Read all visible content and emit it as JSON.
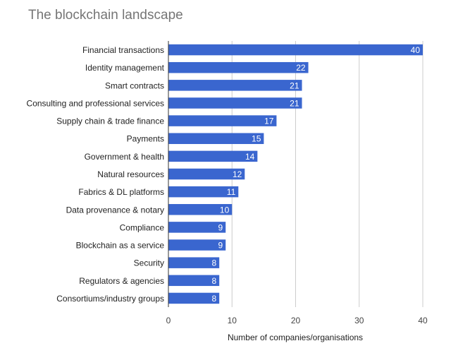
{
  "chart_data": {
    "type": "bar",
    "orientation": "horizontal",
    "title": "The blockchain landscape",
    "xlabel": "Number of companies/organisations",
    "ylabel": "",
    "xlim": [
      0,
      40
    ],
    "ticks": [
      0,
      10,
      20,
      30,
      40
    ],
    "grid": true,
    "legend": "none",
    "bar_color": "#3a66cf",
    "categories": [
      "Financial transactions",
      "Identity management",
      "Smart contracts",
      "Consulting and professional services",
      "Supply chain & trade finance",
      "Payments",
      "Government & health",
      "Natural resources",
      "Fabrics & DL platforms",
      "Data provenance & notary",
      "Compliance",
      "Blockchain as a service",
      "Security",
      "Regulators & agencies",
      "Consortiums/industry groups"
    ],
    "values": [
      40,
      22,
      21,
      21,
      17,
      15,
      14,
      12,
      11,
      10,
      9,
      9,
      8,
      8,
      8
    ]
  }
}
